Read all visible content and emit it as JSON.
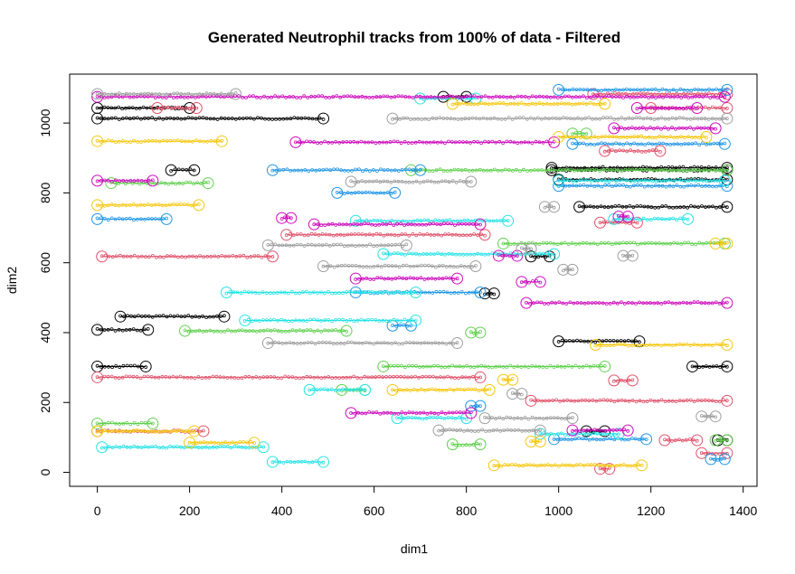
{
  "chart_data": {
    "type": "scatter",
    "title": "Generated Neutrophil tracks from 100% of data - Filtered",
    "xlabel": "dim1",
    "ylabel": "dim2",
    "xlim": [
      -60,
      1430
    ],
    "ylim": [
      -40,
      1140
    ],
    "xticks": [
      "0",
      "200",
      "400",
      "600",
      "800",
      "1000",
      "1200",
      "1400"
    ],
    "yticks": [
      "0",
      "200",
      "400",
      "600",
      "800",
      "1000"
    ],
    "palette": [
      "#000000",
      "#df536b",
      "#61d04f",
      "#2297e6",
      "#28e2e5",
      "#cd0bbc",
      "#f5c710",
      "#9e9e9e"
    ],
    "series": [
      {
        "color": "#000000",
        "tracks": [
          {
            "x0": 0,
            "x1": 200,
            "y": 1043
          },
          {
            "x0": 0,
            "x1": 490,
            "y": 1013
          },
          {
            "x0": 0,
            "x1": 110,
            "y": 408
          },
          {
            "x0": 0,
            "x1": 105,
            "y": 303
          },
          {
            "x0": 50,
            "x1": 275,
            "y": 446
          },
          {
            "x0": 160,
            "x1": 210,
            "y": 865
          },
          {
            "x0": 750,
            "x1": 800,
            "y": 1075
          },
          {
            "x0": 840,
            "x1": 860,
            "y": 512
          },
          {
            "x0": 985,
            "x1": 1365,
            "y": 872
          },
          {
            "x0": 985,
            "x1": 1365,
            "y": 865
          },
          {
            "x0": 1000,
            "x1": 1365,
            "y": 838
          },
          {
            "x0": 1045,
            "x1": 1365,
            "y": 760
          },
          {
            "x0": 1000,
            "x1": 1175,
            "y": 375
          },
          {
            "x0": 1290,
            "x1": 1365,
            "y": 303
          },
          {
            "x0": 1060,
            "x1": 1100,
            "y": 118
          },
          {
            "x0": 940,
            "x1": 980,
            "y": 618
          },
          {
            "x0": 1345,
            "x1": 1365,
            "y": 92
          }
        ]
      },
      {
        "color": "#df536b",
        "tracks": [
          {
            "x0": 10,
            "x1": 380,
            "y": 618
          },
          {
            "x0": 0,
            "x1": 830,
            "y": 272
          },
          {
            "x0": 0,
            "x1": 230,
            "y": 118
          },
          {
            "x0": 130,
            "x1": 215,
            "y": 1043
          },
          {
            "x0": 410,
            "x1": 840,
            "y": 680
          },
          {
            "x0": 1075,
            "x1": 1365,
            "y": 1083
          },
          {
            "x0": 1200,
            "x1": 1365,
            "y": 1043
          },
          {
            "x0": 940,
            "x1": 1365,
            "y": 205
          },
          {
            "x0": 1090,
            "x1": 1170,
            "y": 715
          },
          {
            "x0": 1100,
            "x1": 1220,
            "y": 920
          },
          {
            "x0": 1120,
            "x1": 1160,
            "y": 263
          },
          {
            "x0": 1230,
            "x1": 1300,
            "y": 92
          },
          {
            "x0": 1310,
            "x1": 1365,
            "y": 55
          },
          {
            "x0": 1090,
            "x1": 1110,
            "y": 10
          }
        ]
      },
      {
        "color": "#61d04f",
        "tracks": [
          {
            "x0": 0,
            "x1": 120,
            "y": 140
          },
          {
            "x0": 30,
            "x1": 240,
            "y": 828
          },
          {
            "x0": 190,
            "x1": 540,
            "y": 405
          },
          {
            "x0": 680,
            "x1": 1365,
            "y": 865
          },
          {
            "x0": 620,
            "x1": 1100,
            "y": 303
          },
          {
            "x0": 530,
            "x1": 580,
            "y": 236
          },
          {
            "x0": 880,
            "x1": 1360,
            "y": 655
          },
          {
            "x0": 770,
            "x1": 830,
            "y": 80
          },
          {
            "x0": 1030,
            "x1": 1060,
            "y": 970
          },
          {
            "x0": 810,
            "x1": 830,
            "y": 400
          },
          {
            "x0": 1340,
            "x1": 1365,
            "y": 92
          }
        ]
      },
      {
        "color": "#2297e6",
        "tracks": [
          {
            "x0": 0,
            "x1": 150,
            "y": 725
          },
          {
            "x0": 380,
            "x1": 700,
            "y": 865
          },
          {
            "x0": 520,
            "x1": 645,
            "y": 800
          },
          {
            "x0": 560,
            "x1": 830,
            "y": 515
          },
          {
            "x0": 1000,
            "x1": 1365,
            "y": 1095
          },
          {
            "x0": 1030,
            "x1": 1360,
            "y": 940
          },
          {
            "x0": 1000,
            "x1": 1365,
            "y": 820
          },
          {
            "x0": 810,
            "x1": 830,
            "y": 190
          },
          {
            "x0": 990,
            "x1": 1190,
            "y": 95
          },
          {
            "x0": 640,
            "x1": 680,
            "y": 420
          },
          {
            "x0": 1330,
            "x1": 1360,
            "y": 38
          }
        ]
      },
      {
        "color": "#28e2e5",
        "tracks": [
          {
            "x0": 10,
            "x1": 360,
            "y": 72
          },
          {
            "x0": 280,
            "x1": 690,
            "y": 515
          },
          {
            "x0": 320,
            "x1": 690,
            "y": 435
          },
          {
            "x0": 560,
            "x1": 890,
            "y": 720
          },
          {
            "x0": 380,
            "x1": 490,
            "y": 30
          },
          {
            "x0": 460,
            "x1": 580,
            "y": 236
          },
          {
            "x0": 620,
            "x1": 990,
            "y": 625
          },
          {
            "x0": 650,
            "x1": 800,
            "y": 155
          },
          {
            "x0": 700,
            "x1": 820,
            "y": 1070
          },
          {
            "x0": 1120,
            "x1": 1280,
            "y": 725
          },
          {
            "x0": 1000,
            "x1": 1360,
            "y": 835
          },
          {
            "x0": 960,
            "x1": 1130,
            "y": 110
          }
        ]
      },
      {
        "color": "#cd0bbc",
        "tracks": [
          {
            "x0": 0,
            "x1": 120,
            "y": 835
          },
          {
            "x0": 0,
            "x1": 1360,
            "y": 1075
          },
          {
            "x0": 430,
            "x1": 990,
            "y": 945
          },
          {
            "x0": 470,
            "x1": 830,
            "y": 710
          },
          {
            "x0": 560,
            "x1": 780,
            "y": 555
          },
          {
            "x0": 550,
            "x1": 810,
            "y": 170
          },
          {
            "x0": 930,
            "x1": 1365,
            "y": 485
          },
          {
            "x0": 870,
            "x1": 910,
            "y": 620
          },
          {
            "x0": 1170,
            "x1": 1300,
            "y": 1043
          },
          {
            "x0": 1120,
            "x1": 1340,
            "y": 985
          },
          {
            "x0": 1030,
            "x1": 1150,
            "y": 120
          },
          {
            "x0": 920,
            "x1": 960,
            "y": 545
          },
          {
            "x0": 400,
            "x1": 420,
            "y": 728
          },
          {
            "x0": 1130,
            "x1": 1150,
            "y": 732
          }
        ]
      },
      {
        "color": "#f5c710",
        "tracks": [
          {
            "x0": 0,
            "x1": 270,
            "y": 948
          },
          {
            "x0": 0,
            "x1": 220,
            "y": 765
          },
          {
            "x0": 0,
            "x1": 210,
            "y": 118
          },
          {
            "x0": 200,
            "x1": 340,
            "y": 85
          },
          {
            "x0": 640,
            "x1": 850,
            "y": 236
          },
          {
            "x0": 860,
            "x1": 1180,
            "y": 20
          },
          {
            "x0": 770,
            "x1": 1100,
            "y": 1055
          },
          {
            "x0": 1000,
            "x1": 1320,
            "y": 960
          },
          {
            "x0": 1080,
            "x1": 1365,
            "y": 365
          },
          {
            "x0": 1340,
            "x1": 1365,
            "y": 655
          },
          {
            "x0": 880,
            "x1": 900,
            "y": 265
          },
          {
            "x0": 940,
            "x1": 960,
            "y": 88
          }
        ]
      },
      {
        "color": "#9e9e9e",
        "tracks": [
          {
            "x0": 0,
            "x1": 300,
            "y": 1083
          },
          {
            "x0": 370,
            "x1": 780,
            "y": 370
          },
          {
            "x0": 370,
            "x1": 670,
            "y": 650
          },
          {
            "x0": 550,
            "x1": 810,
            "y": 832
          },
          {
            "x0": 490,
            "x1": 820,
            "y": 590
          },
          {
            "x0": 640,
            "x1": 1365,
            "y": 1013
          },
          {
            "x0": 740,
            "x1": 960,
            "y": 120
          },
          {
            "x0": 840,
            "x1": 1030,
            "y": 155
          },
          {
            "x0": 970,
            "x1": 990,
            "y": 760
          },
          {
            "x0": 1010,
            "x1": 1030,
            "y": 580
          },
          {
            "x0": 1140,
            "x1": 1160,
            "y": 620
          },
          {
            "x0": 1310,
            "x1": 1340,
            "y": 160
          },
          {
            "x0": 900,
            "x1": 920,
            "y": 225
          },
          {
            "x0": 920,
            "x1": 940,
            "y": 640
          }
        ]
      }
    ]
  }
}
